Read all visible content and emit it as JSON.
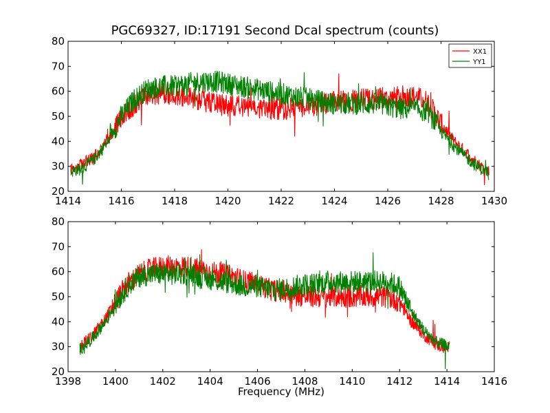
{
  "title": "PGC69327, ID:17191 Second Dcal spectrum (counts)",
  "xlabel": "Frequency (MHz)",
  "colors": {
    "XX1": "#ff0000",
    "YY1": "#008000"
  },
  "chart_data": [
    {
      "type": "line",
      "xlim": [
        1414,
        1430
      ],
      "ylim": [
        20,
        80
      ],
      "xticks": [
        1414,
        1416,
        1418,
        1420,
        1422,
        1424,
        1426,
        1428,
        1430
      ],
      "yticks": [
        20,
        30,
        40,
        50,
        60,
        70,
        80
      ],
      "legend": {
        "placement": "top-right",
        "entries": [
          "XX1",
          "YY1"
        ]
      },
      "series": [
        {
          "name": "XX1",
          "x": [
            1414.1,
            1414.5,
            1415.0,
            1415.5,
            1416.0,
            1416.5,
            1417.0,
            1417.5,
            1418.0,
            1418.5,
            1419.0,
            1419.5,
            1420.0,
            1420.5,
            1421.0,
            1421.5,
            1422.0,
            1422.5,
            1423.0,
            1423.5,
            1424.0,
            1424.5,
            1425.0,
            1425.5,
            1426.0,
            1426.5,
            1427.0,
            1427.5,
            1428.0,
            1428.5,
            1429.0,
            1429.5,
            1429.8
          ],
          "y": [
            29,
            31,
            34,
            41,
            49,
            55,
            58,
            59,
            59,
            58,
            56,
            55,
            54,
            54,
            53,
            53,
            53,
            53,
            54,
            55,
            56,
            56,
            57,
            57,
            57,
            58,
            58,
            56,
            47,
            40,
            35,
            30,
            28
          ]
        },
        {
          "name": "YY1",
          "x": [
            1414.1,
            1414.5,
            1415.0,
            1415.5,
            1416.0,
            1416.5,
            1417.0,
            1417.5,
            1418.0,
            1418.5,
            1419.0,
            1419.5,
            1420.0,
            1420.5,
            1421.0,
            1421.5,
            1422.0,
            1422.5,
            1423.0,
            1423.5,
            1424.0,
            1424.5,
            1425.0,
            1425.5,
            1426.0,
            1426.5,
            1427.0,
            1427.5,
            1428.0,
            1428.5,
            1429.0,
            1429.5,
            1429.8
          ],
          "y": [
            28,
            29,
            33,
            40,
            50,
            57,
            61,
            62,
            62,
            63,
            64,
            64,
            63,
            62,
            61,
            60,
            59,
            58,
            57,
            56,
            55,
            55,
            55,
            55,
            54,
            53,
            53,
            52,
            44,
            38,
            33,
            29,
            27
          ]
        }
      ]
    },
    {
      "type": "line",
      "xlim": [
        1398,
        1416
      ],
      "ylim": [
        20,
        80
      ],
      "xticks": [
        1398,
        1400,
        1402,
        1404,
        1406,
        1408,
        1410,
        1412,
        1414,
        1416
      ],
      "yticks": [
        20,
        30,
        40,
        50,
        60,
        70,
        80
      ],
      "series": [
        {
          "name": "XX1",
          "x": [
            1398.5,
            1399.0,
            1399.5,
            1400.0,
            1400.5,
            1401.0,
            1401.5,
            1402.0,
            1402.5,
            1403.0,
            1403.5,
            1404.0,
            1404.5,
            1405.0,
            1405.5,
            1406.0,
            1406.5,
            1407.0,
            1407.5,
            1408.0,
            1408.5,
            1409.0,
            1409.5,
            1410.0,
            1410.5,
            1411.0,
            1411.5,
            1412.0,
            1412.5,
            1413.0,
            1413.5,
            1414.1
          ],
          "y": [
            30,
            34,
            40,
            48,
            55,
            59,
            61,
            62,
            62,
            62,
            61,
            60,
            59,
            58,
            56,
            55,
            53,
            52,
            51,
            50,
            50,
            50,
            50,
            50,
            50,
            50,
            50,
            48,
            40,
            35,
            31,
            29
          ]
        },
        {
          "name": "YY1",
          "x": [
            1398.5,
            1399.0,
            1399.5,
            1400.0,
            1400.5,
            1401.0,
            1401.5,
            1402.0,
            1402.5,
            1403.0,
            1403.5,
            1404.0,
            1404.5,
            1405.0,
            1405.5,
            1406.0,
            1406.5,
            1407.0,
            1407.5,
            1408.0,
            1408.5,
            1409.0,
            1409.5,
            1410.0,
            1410.5,
            1411.0,
            1411.5,
            1412.0,
            1412.5,
            1413.0,
            1413.5,
            1414.1
          ],
          "y": [
            29,
            33,
            39,
            47,
            54,
            58,
            59,
            59,
            59,
            59,
            58,
            57,
            56,
            55,
            54,
            54,
            53,
            53,
            54,
            55,
            55,
            56,
            56,
            56,
            56,
            56,
            56,
            54,
            44,
            37,
            32,
            30
          ]
        }
      ]
    }
  ]
}
